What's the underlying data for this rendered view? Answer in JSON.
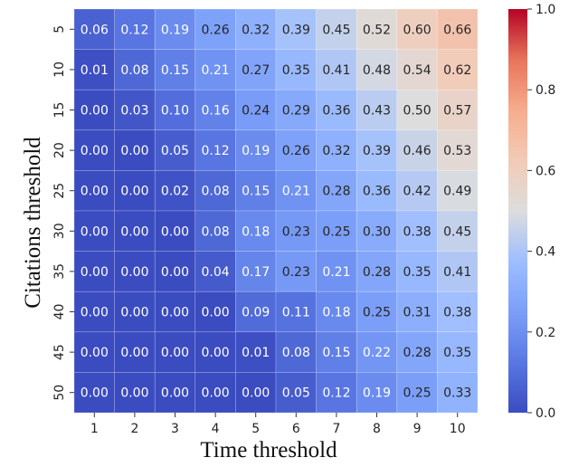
{
  "chart_data": {
    "type": "heatmap",
    "title": "",
    "xlabel": "Time threshold",
    "ylabel": "Citations threshold",
    "x": [
      "1",
      "2",
      "3",
      "4",
      "5",
      "6",
      "7",
      "8",
      "9",
      "10"
    ],
    "y": [
      "5",
      "10",
      "15",
      "20",
      "25",
      "30",
      "35",
      "40",
      "45",
      "50"
    ],
    "values": [
      [
        0.06,
        0.12,
        0.19,
        0.26,
        0.32,
        0.39,
        0.45,
        0.52,
        0.6,
        0.66
      ],
      [
        0.01,
        0.08,
        0.15,
        0.21,
        0.27,
        0.35,
        0.41,
        0.48,
        0.54,
        0.62
      ],
      [
        0.0,
        0.03,
        0.1,
        0.16,
        0.24,
        0.29,
        0.36,
        0.43,
        0.5,
        0.57
      ],
      [
        0.0,
        0.0,
        0.05,
        0.12,
        0.19,
        0.26,
        0.32,
        0.39,
        0.46,
        0.53
      ],
      [
        0.0,
        0.0,
        0.02,
        0.08,
        0.15,
        0.21,
        0.28,
        0.36,
        0.42,
        0.49
      ],
      [
        0.0,
        0.0,
        0.0,
        0.08,
        0.18,
        0.23,
        0.25,
        0.3,
        0.38,
        0.45
      ],
      [
        0.0,
        0.0,
        0.0,
        0.04,
        0.17,
        0.23,
        0.21,
        0.28,
        0.35,
        0.41
      ],
      [
        0.0,
        0.0,
        0.0,
        0.0,
        0.09,
        0.11,
        0.18,
        0.25,
        0.31,
        0.38
      ],
      [
        0.0,
        0.0,
        0.0,
        0.0,
        0.01,
        0.08,
        0.15,
        0.22,
        0.28,
        0.35
      ],
      [
        0.0,
        0.0,
        0.0,
        0.0,
        0.0,
        0.05,
        0.12,
        0.19,
        0.25,
        0.33
      ]
    ],
    "colorbar": {
      "colormap": "coolwarm",
      "range": [
        0.0,
        1.0
      ],
      "ticks": [
        "0.0",
        "0.2",
        "0.4",
        "0.6",
        "0.8",
        "1.0"
      ]
    }
  }
}
